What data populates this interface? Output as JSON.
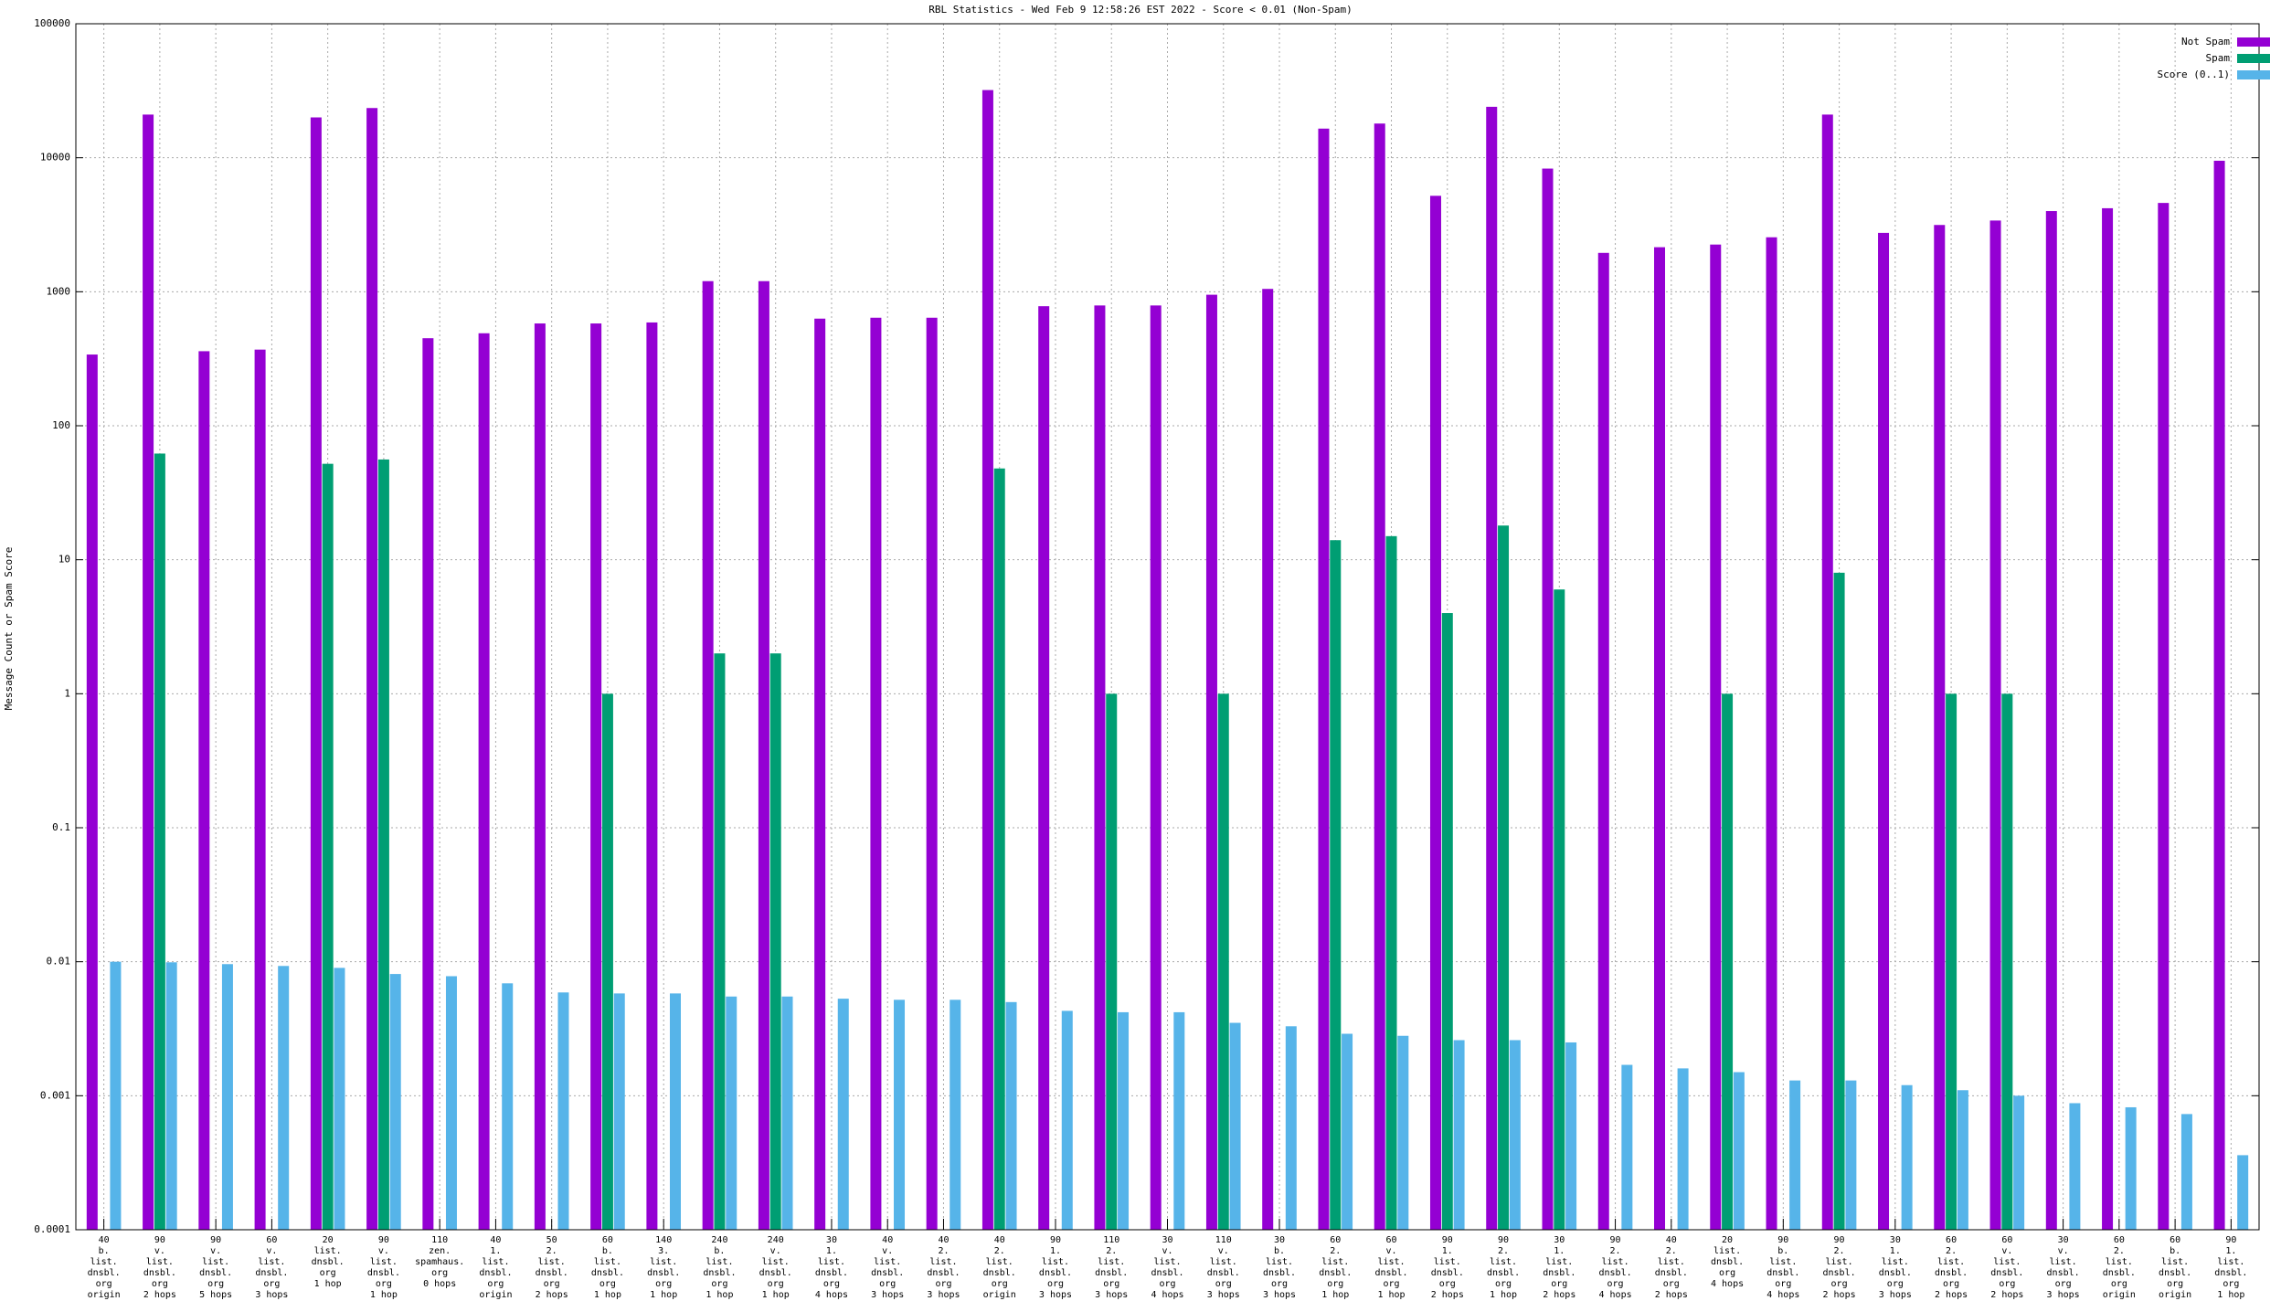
{
  "chart_data": {
    "type": "bar",
    "title": "RBL Statistics - Wed Feb  9 12:58:26 EST 2022 - Score < 0.01 (Non-Spam)",
    "y_label": "Message Count or Spam Score",
    "yscale": "log",
    "ylim": [
      0.0001,
      100000
    ],
    "yticks": [
      0.0001,
      0.001,
      0.01,
      0.1,
      1,
      10,
      100,
      1000,
      10000,
      100000
    ],
    "grid": true,
    "legend": "top-right",
    "categories": [
      "40\nb.\nlist.\ndnsbl.\norg\norigin",
      "90\nv.\nlist.\ndnsbl.\norg\n2 hops",
      "90\nv.\nlist.\ndnsbl.\norg\n5 hops",
      "60\nv.\nlist.\ndnsbl.\norg\n3 hops",
      "20\nlist.\ndnsbl.\norg\n1 hop",
      "90\nv.\nlist.\ndnsbl.\norg\n1 hop",
      "110\nzen.\nspamhaus.\norg\n0 hops",
      "40\n1.\nlist.\ndnsbl.\norg\norigin",
      "50\n2.\nlist.\ndnsbl.\norg\n2 hops",
      "60\nb.\nlist.\ndnsbl.\norg\n1 hop",
      "140\n3.\nlist.\ndnsbl.\norg\n1 hop",
      "240\nb.\nlist.\ndnsbl.\norg\n1 hop",
      "240\nv.\nlist.\ndnsbl.\norg\n1 hop",
      "30\n1.\nlist.\ndnsbl.\norg\n4 hops",
      "40\nv.\nlist.\ndnsbl.\norg\n3 hops",
      "40\n2.\nlist.\ndnsbl.\norg\n3 hops",
      "40\n2.\nlist.\ndnsbl.\norg\norigin",
      "90\n1.\nlist.\ndnsbl.\norg\n3 hops",
      "110\n2.\nlist.\ndnsbl.\norg\n3 hops",
      "30\nv.\nlist.\ndnsbl.\norg\n4 hops",
      "110\nv.\nlist.\ndnsbl.\norg\n3 hops",
      "30\nb.\nlist.\ndnsbl.\norg\n3 hops",
      "60\n2.\nlist.\ndnsbl.\norg\n1 hop",
      "60\nv.\nlist.\ndnsbl.\norg\n1 hop",
      "90\n1.\nlist.\ndnsbl.\norg\n2 hops",
      "90\n2.\nlist.\ndnsbl.\norg\n1 hop",
      "30\n1.\nlist.\ndnsbl.\norg\n2 hops",
      "90\n2.\nlist.\ndnsbl.\norg\n4 hops",
      "40\n2.\nlist.\ndnsbl.\norg\n2 hops",
      "20\nlist.\ndnsbl.\norg\n4 hops",
      "90\nb.\nlist.\ndnsbl.\norg\n4 hops",
      "90\n2.\nlist.\ndnsbl.\norg\n2 hops",
      "30\n1.\nlist.\ndnsbl.\norg\n3 hops",
      "60\n2.\nlist.\ndnsbl.\norg\n2 hops",
      "60\nv.\nlist.\ndnsbl.\norg\n2 hops",
      "30\nv.\nlist.\ndnsbl.\norg\n3 hops",
      "60\n2.\nlist.\ndnsbl.\norg\norigin",
      "60\nb.\nlist.\ndnsbl.\norg\norigin",
      "90\n1.\nlist.\ndnsbl.\norg\n1 hop"
    ],
    "series": [
      {
        "name": "Not Spam",
        "color": "#9400d3",
        "values": [
          340,
          21000,
          360,
          370,
          20000,
          23500,
          450,
          490,
          580,
          580,
          590,
          1200,
          1200,
          630,
          640,
          640,
          32000,
          780,
          790,
          790,
          950,
          1050,
          16500,
          18000,
          5200,
          24000,
          8300,
          1950,
          2150,
          2250,
          2550,
          21000,
          2750,
          3150,
          3400,
          4000,
          4200,
          4600,
          9500
        ]
      },
      {
        "name": "Spam",
        "color": "#009e73",
        "values": [
          null,
          62,
          null,
          null,
          52,
          56,
          null,
          null,
          null,
          1,
          null,
          2,
          2,
          null,
          null,
          null,
          48,
          null,
          1,
          null,
          1,
          null,
          14,
          15,
          4,
          18,
          6,
          null,
          null,
          1,
          null,
          8,
          null,
          1,
          1,
          null,
          null,
          null,
          null
        ]
      },
      {
        "name": "Score (0..1)",
        "color": "#56b4e9",
        "values": [
          0.01,
          0.0099,
          0.0096,
          0.0093,
          0.009,
          0.0081,
          0.0078,
          0.0069,
          0.0059,
          0.0058,
          0.0058,
          0.0055,
          0.0055,
          0.0053,
          0.0052,
          0.0052,
          0.005,
          0.0043,
          0.0042,
          0.0042,
          0.0035,
          0.0033,
          0.0029,
          0.0028,
          0.0026,
          0.0026,
          0.0025,
          0.0017,
          0.0016,
          0.0015,
          0.0013,
          0.0013,
          0.0012,
          0.0011,
          0.001,
          0.00088,
          0.00082,
          0.00073,
          0.00036
        ]
      }
    ]
  }
}
